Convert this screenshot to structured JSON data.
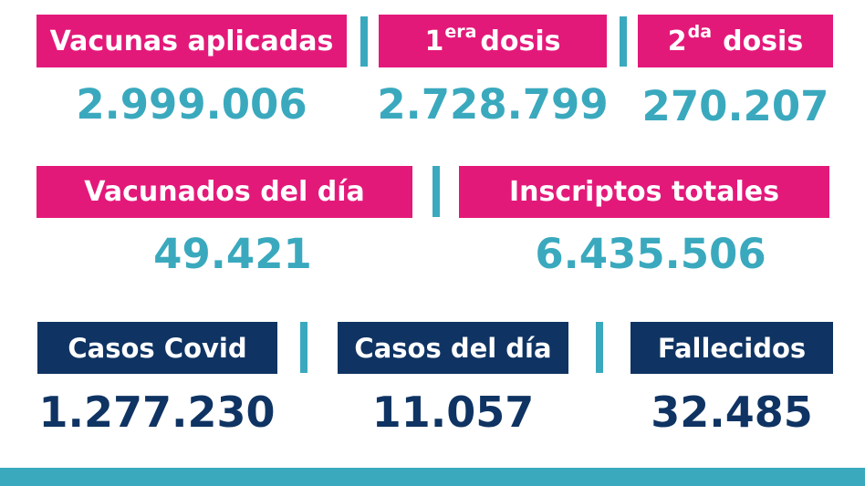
{
  "colors": {
    "accent_pink": "#e3197a",
    "navy": "#0f3463",
    "teal": "#3aa9be"
  },
  "row1": {
    "vacunas_aplicadas": {
      "label": "Vacunas aplicadas",
      "value": "2.999.006"
    },
    "primera_dosis": {
      "label_prefix": "1",
      "label_sup": "era",
      "label_suffix": "dosis",
      "value": "2.728.799"
    },
    "segunda_dosis": {
      "label_prefix": "2",
      "label_sup": "da",
      "label_suffix": "dosis",
      "value": "270.207"
    }
  },
  "row2": {
    "vacunados_del_dia": {
      "label": "Vacunados del día",
      "value": "49.421"
    },
    "inscriptos_totales": {
      "label": "Inscriptos totales",
      "value": "6.435.506"
    }
  },
  "row3": {
    "casos_covid": {
      "label": "Casos Covid",
      "value": "1.277.230"
    },
    "casos_del_dia": {
      "label": "Casos del día",
      "value": "11.057"
    },
    "fallecidos": {
      "label": "Fallecidos",
      "value": "32.485"
    }
  }
}
